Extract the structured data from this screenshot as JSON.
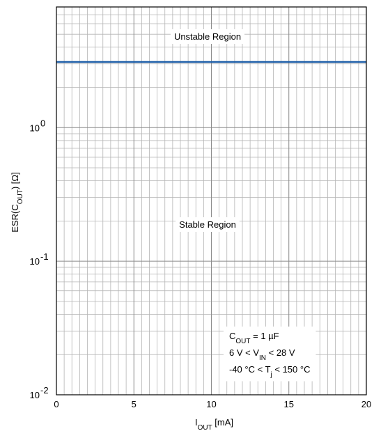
{
  "chart_data": {
    "type": "line",
    "title": "",
    "xlabel": {
      "main": "I",
      "sub": "OUT",
      "unit": " [mA]"
    },
    "ylabel": {
      "main": "ESR(C",
      "sub": "OUT",
      "unit": ") [Ω]"
    },
    "xlim": [
      0,
      20
    ],
    "ylim": [
      0.01,
      8
    ],
    "yscale": "log",
    "x_ticks": [
      0,
      5,
      10,
      15,
      20
    ],
    "x_minor_step": 0.5,
    "y_ticks": [
      {
        "value": 1,
        "base": "10",
        "exp": "0"
      },
      {
        "value": 0.1,
        "base": "10",
        "exp": "-1"
      },
      {
        "value": 0.01,
        "base": "10",
        "exp": "-2"
      }
    ],
    "grid": true,
    "series": [
      {
        "x": [
          0,
          20
        ],
        "y": [
          3.1,
          3.1
        ],
        "color": "#1f5fa8"
      }
    ],
    "annotations": {
      "upper_region": "Unstable Region",
      "lower_region": "Stable Region"
    },
    "conditions": [
      {
        "parts": [
          [
            "C",
            ""
          ],
          [
            "OUT",
            "sub"
          ],
          [
            " = 1 µF",
            ""
          ]
        ]
      },
      {
        "parts": [
          [
            "6 V < V",
            ""
          ],
          [
            "IN",
            "sub"
          ],
          [
            " < 28 V",
            ""
          ]
        ]
      },
      {
        "parts": [
          [
            "-40 °C < T",
            ""
          ],
          [
            "j",
            "sub"
          ],
          [
            " < 150 °C",
            ""
          ]
        ]
      }
    ]
  }
}
